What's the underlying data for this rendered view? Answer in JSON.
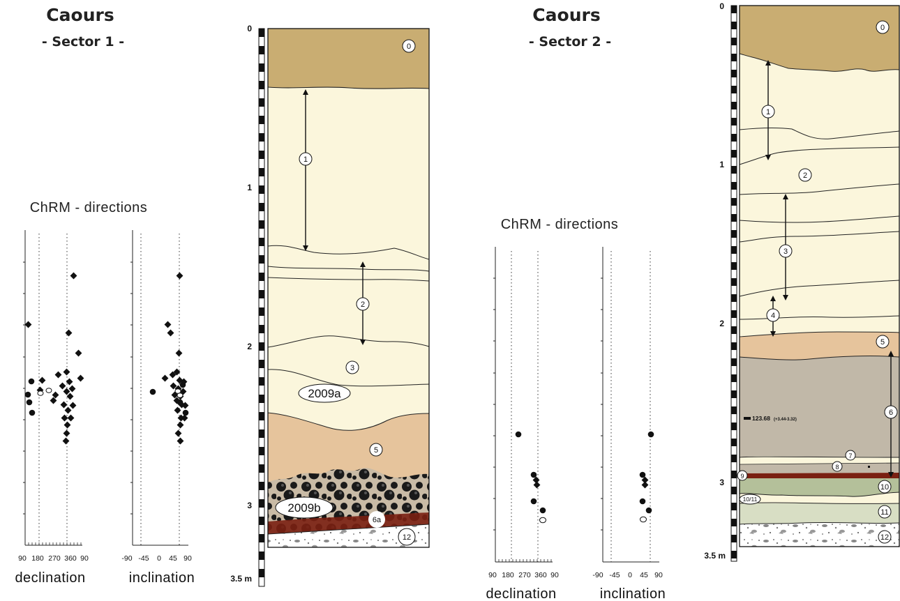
{
  "sector1": {
    "site": "Caours",
    "sector": "- Sector 1 -",
    "chrm_title": "ChRM - directions",
    "declination_label": "declination",
    "inclination_label": "inclination",
    "decl_ticks": [
      "90",
      "180",
      "270",
      "360",
      "90"
    ],
    "incl_ticks": [
      "-90",
      "-45",
      "0",
      "45",
      "90"
    ],
    "depth_ticks": [
      "0",
      "1",
      "2",
      "3"
    ],
    "depth_unit": "3.5 m",
    "units": [
      "0",
      "1",
      "2",
      "3",
      "5",
      "12"
    ],
    "unit_6a": "6a",
    "sample_2009a": "2009a",
    "sample_2009b": "2009b"
  },
  "sector2": {
    "site": "Caours",
    "sector": "- Sector 2 -",
    "chrm_title": "ChRM - directions",
    "declination_label": "declination",
    "inclination_label": "inclination",
    "decl_ticks": [
      "90",
      "180",
      "270",
      "360",
      "90"
    ],
    "incl_ticks": [
      "-90",
      "-45",
      "0",
      "45",
      "90"
    ],
    "depth_ticks": [
      "0",
      "1",
      "2",
      "3"
    ],
    "depth_unit": "3.5 m",
    "units": [
      "0",
      "1",
      "2",
      "3",
      "4",
      "5",
      "6",
      "7",
      "8",
      "9",
      "10",
      "10/11",
      "11",
      "12"
    ],
    "age_value": "123.68",
    "age_error": "(+3.44-3.32)"
  },
  "colors": {
    "unit0": "#c9ad72",
    "loess": "#fbf6dc",
    "unit5": "#e6c49c",
    "unit6": "#c1b8a8",
    "unit10": "#b4c09a",
    "unit11": "#d8dec4",
    "soil_red": "#7a2012"
  }
}
